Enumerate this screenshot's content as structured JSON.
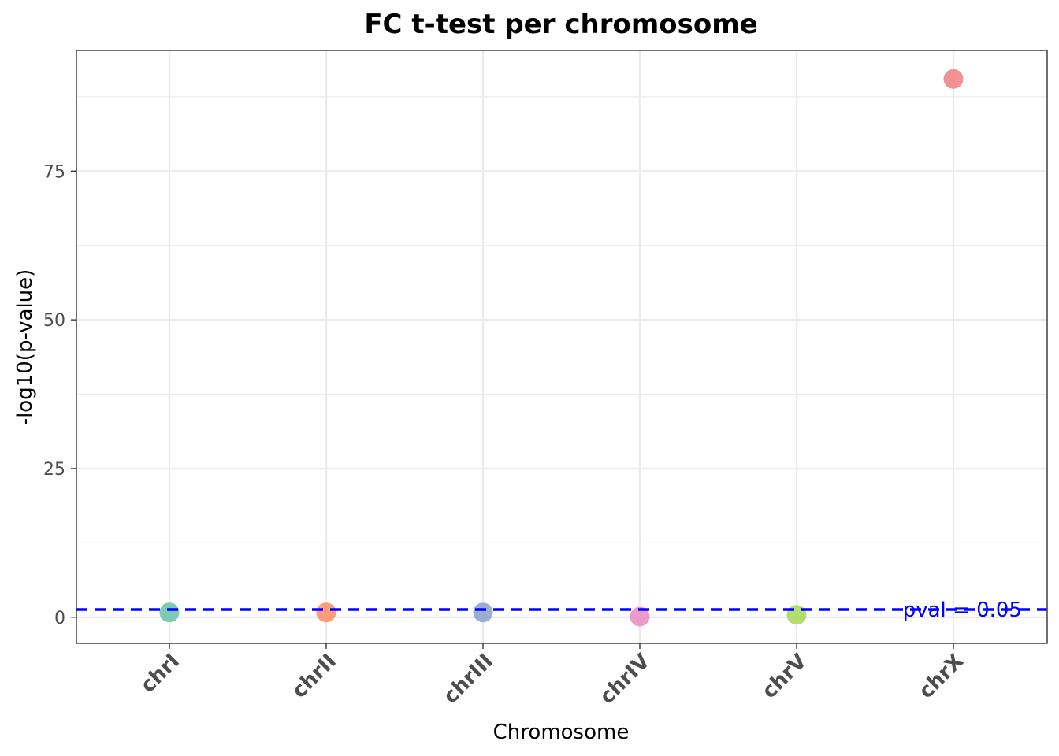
{
  "chart_data": {
    "type": "scatter",
    "title": "FC t-test per chromosome",
    "xlabel": "Chromosome",
    "ylabel": "-log10(p-value)",
    "categories": [
      "chrI",
      "chrII",
      "chrIII",
      "chrIV",
      "chrV",
      "chrX"
    ],
    "values": [
      0.8,
      0.8,
      0.8,
      0.1,
      0.4,
      90.5
    ],
    "point_colors": [
      "#66c2a5",
      "#fc8d62",
      "#8da0cb",
      "#e78ac3",
      "#a6d854",
      "#f08080"
    ],
    "ylim": [
      -4.4,
      95.3
    ],
    "yticks": [
      0,
      25,
      50,
      75
    ],
    "threshold": {
      "value": 1.3,
      "label": "pval = 0.05",
      "color": "#0000ff"
    },
    "grid": true,
    "legend": "none"
  }
}
